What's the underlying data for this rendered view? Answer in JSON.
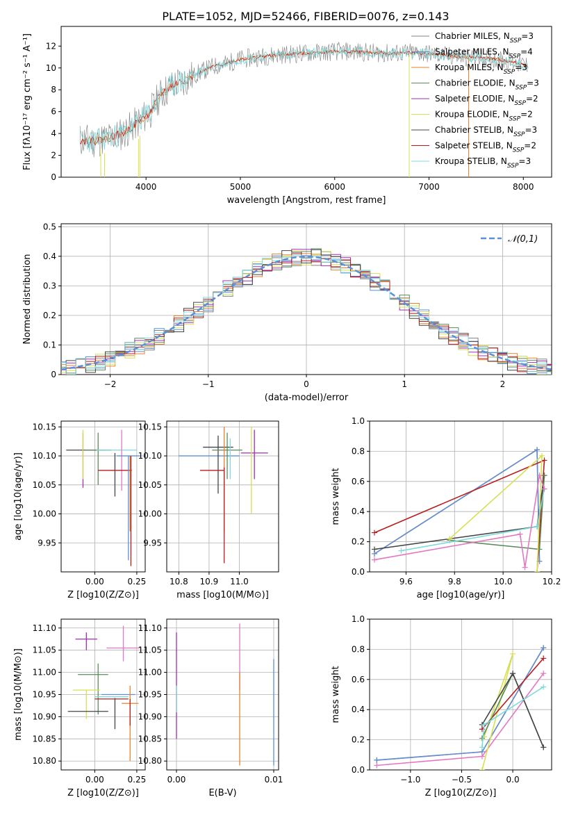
{
  "figure": {
    "title": "PLATE=1052, MJD=52466, FIBERID=0076, z=0.143"
  },
  "model_colors": {
    "Chabrier MILES": "#808080",
    "Salpeter MILES": "#5b8fd8",
    "Kroupa MILES": "#e8812c",
    "Chabrier ELODIE": "#5a8a5a",
    "Salpeter ELODIE": "#a02bb5",
    "Kroupa ELODIE": "#d7e052",
    "Chabrier STELIB": "#444444",
    "Salpeter STELIB": "#b71c1c",
    "Kroupa STELIB": "#7fd9dd",
    "pink": "#e377c2",
    "normal": "#5b8fd8"
  },
  "chart_data": [
    {
      "id": "spectrum",
      "type": "line",
      "xlabel": "wavelength [Angstrom, rest frame]",
      "ylabel": "Flux [fλ10⁻¹⁷ erg cm⁻² s⁻¹ A⁻¹]",
      "xlim": [
        3100,
        8300
      ],
      "ylim": [
        0,
        13.8
      ],
      "xticks": [
        4000,
        5000,
        6000,
        7000,
        8000
      ],
      "yticks": [
        0,
        2,
        4,
        6,
        8,
        10,
        12
      ],
      "legend_position": "right",
      "legend": [
        "Chabrier MILES, N_SSP=3",
        "Salpeter MILES, N_SSP=4",
        "Kroupa MILES, N_SSP=3",
        "Chabrier ELODIE, N_SSP=3",
        "Salpeter ELODIE, N_SSP=2",
        "Kroupa ELODIE, N_SSP=2",
        "Chabrier STELIB, N_SSP=3",
        "Salpeter STELIB, N_SSP=2",
        "Kroupa STELIB, N_SSP=3"
      ],
      "continuum": {
        "x": [
          3300,
          3450,
          3550,
          3650,
          3750,
          3850,
          3950,
          4050,
          4150,
          4250,
          4350,
          4450,
          4550,
          4700,
          4850,
          5000,
          5200,
          5400,
          5600,
          5800,
          6000,
          6200,
          6400,
          6600,
          6800,
          7000,
          7200,
          7400,
          7600,
          7800,
          8050
        ],
        "y": [
          3.4,
          3.3,
          3.5,
          3.7,
          4.0,
          4.6,
          5.3,
          6.0,
          7.5,
          8.2,
          8.7,
          9.0,
          9.5,
          10.1,
          10.4,
          10.8,
          11.0,
          11.2,
          11.3,
          11.4,
          11.5,
          11.5,
          11.4,
          11.3,
          11.4,
          11.3,
          11.1,
          11.0,
          10.9,
          10.7,
          10.2
        ]
      },
      "observed_noise_amplitude": 1.6,
      "spikes": [
        {
          "x": 3520,
          "y0": 0,
          "y1": 2.6
        },
        {
          "x": 3560,
          "y0": 0,
          "y1": 2.2
        },
        {
          "x": 3920,
          "y0": 0,
          "y1": 3.5
        },
        {
          "x": 3935,
          "y0": 0,
          "y1": 3.8
        },
        {
          "x": 6790,
          "y0": 0,
          "y1": 11.2
        },
        {
          "x": 7420,
          "y0": 0,
          "y1": 11.0
        }
      ]
    },
    {
      "id": "residuals",
      "type": "line",
      "xlabel": "(data-model)/error",
      "ylabel": "Normed distribution",
      "xlim": [
        -2.5,
        2.5
      ],
      "ylim": [
        0,
        0.51
      ],
      "xticks": [
        -2,
        -1,
        0,
        1,
        2
      ],
      "yticks": [
        0,
        0.1,
        0.2,
        0.3,
        0.4,
        0.5
      ],
      "legend_position": "top-right",
      "legend": [
        "𝒩(0,1)"
      ],
      "bin_width": 0.1,
      "series": [
        {
          "color": "#808080",
          "seed": 1
        },
        {
          "color": "#5b8fd8",
          "seed": 2
        },
        {
          "color": "#e8812c",
          "seed": 3
        },
        {
          "color": "#5a8a5a",
          "seed": 4
        },
        {
          "color": "#a02bb5",
          "seed": 5
        },
        {
          "color": "#d7e052",
          "seed": 6
        },
        {
          "color": "#444444",
          "seed": 7
        },
        {
          "color": "#b71c1c",
          "seed": 8
        },
        {
          "color": "#7fd9dd",
          "seed": 9
        }
      ]
    },
    {
      "id": "age-vs-Z",
      "type": "scatter",
      "xlabel": "Z [log10(Z/Z⊙)]",
      "ylabel": "age  [log10(age/yr)]",
      "xlim": [
        -0.2,
        0.3
      ],
      "ylim": [
        9.9,
        10.16
      ],
      "xticks": [
        0.0,
        0.25
      ],
      "yticks": [
        9.95,
        10.0,
        10.05,
        10.1,
        10.15
      ],
      "points": [
        {
          "x": -0.05,
          "y": 10.11,
          "xerr": 0.12,
          "yerr_lo": 0.0,
          "yerr_hi": 0.0,
          "color": "#444444"
        },
        {
          "x": 0.02,
          "y": 10.11,
          "xerr": 0.08,
          "yerr_lo": 0.06,
          "yerr_hi": 0.03,
          "color": "#5a8a5a"
        },
        {
          "x": -0.07,
          "y": 10.1,
          "xerr": 0.0,
          "yerr_lo": 0.055,
          "yerr_hi": 0.04,
          "color": "#a02bb5"
        },
        {
          "x": -0.07,
          "y": 10.1,
          "xerr": 0.0,
          "yerr_lo": 0.04,
          "yerr_hi": 0.045,
          "color": "#d7e052"
        },
        {
          "x": 0.12,
          "y": 10.1,
          "xerr": 0.0,
          "yerr_lo": 0.07,
          "yerr_hi": 0.005,
          "color": "#444444"
        },
        {
          "x": 0.13,
          "y": 10.11,
          "xerr": 0.12,
          "yerr_lo": 0.0,
          "yerr_hi": 0.0,
          "color": "#7fd9dd"
        },
        {
          "x": 0.16,
          "y": 10.08,
          "xerr": 0.0,
          "yerr_lo": 0.04,
          "yerr_hi": 0.065,
          "color": "#e377c2"
        },
        {
          "x": 0.12,
          "y": 10.075,
          "xerr": 0.1,
          "yerr_lo": 0.0,
          "yerr_hi": 0.0,
          "color": "#b71c1c"
        },
        {
          "x": 0.2,
          "y": 10.1,
          "xerr": 0.07,
          "yerr_lo": 0.18,
          "yerr_hi": 0.0,
          "color": "#5b8fd8"
        },
        {
          "x": 0.21,
          "y": 10.1,
          "xerr": 0.0,
          "yerr_lo": 0.13,
          "yerr_hi": 0.0,
          "color": "#e8812c"
        },
        {
          "x": 0.215,
          "y": 10.1,
          "xerr": 0.0,
          "yerr_lo": 0.19,
          "yerr_hi": 0.0,
          "color": "#b71c1c"
        }
      ]
    },
    {
      "id": "age-vs-mass",
      "type": "scatter",
      "xlabel": "mass [log10(M/M⊙)]",
      "ylabel": "",
      "xlim": [
        10.76,
        11.13
      ],
      "ylim": [
        9.9,
        10.16
      ],
      "xticks": [
        10.8,
        10.9,
        11.0
      ],
      "yticks": [
        9.95,
        10.0,
        10.05,
        10.1,
        10.15
      ],
      "points": [
        {
          "x": 10.9,
          "y": 10.1,
          "xerr": 0.1,
          "yerr_lo": 0.0,
          "yerr_hi": 0.0,
          "color": "#5b8fd8"
        },
        {
          "x": 10.93,
          "y": 10.115,
          "xerr": 0.05,
          "yerr_lo": 0.08,
          "yerr_hi": 0.02,
          "color": "#444444"
        },
        {
          "x": 10.96,
          "y": 10.11,
          "xerr": 0.05,
          "yerr_lo": 0.05,
          "yerr_hi": 0.03,
          "color": "#5a8a5a"
        },
        {
          "x": 11.05,
          "y": 10.105,
          "xerr": 0.045,
          "yerr_lo": 0.045,
          "yerr_hi": 0.04,
          "color": "#a02bb5"
        },
        {
          "x": 10.95,
          "y": 10.1,
          "xerr": 0.0,
          "yerr_lo": 0.13,
          "yerr_hi": 0.05,
          "color": "#e8812c"
        },
        {
          "x": 10.91,
          "y": 10.075,
          "xerr": 0.04,
          "yerr_lo": 0.0,
          "yerr_hi": 0.0,
          "color": "#b71c1c"
        },
        {
          "x": 10.95,
          "y": 10.08,
          "xerr": 0.0,
          "yerr_lo": 0.165,
          "yerr_hi": 0.0,
          "color": "#b71c1c"
        },
        {
          "x": 10.97,
          "y": 10.1,
          "xerr": 0.0,
          "yerr_lo": 0.04,
          "yerr_hi": 0.03,
          "color": "#7fd9dd"
        },
        {
          "x": 11.04,
          "y": 10.1,
          "xerr": 0.0,
          "yerr_lo": 0.1,
          "yerr_hi": 0.05,
          "color": "#d7e052"
        }
      ]
    },
    {
      "id": "mass-weight-vs-age",
      "type": "line",
      "xlabel": "age  [log10(age/yr)]",
      "ylabel": "mass weight",
      "xlim": [
        9.45,
        10.2
      ],
      "ylim": [
        0,
        1.0
      ],
      "xticks": [
        9.6,
        9.8,
        10.0,
        10.2
      ],
      "yticks": [
        0.0,
        0.2,
        0.4,
        0.6,
        0.8,
        1.0
      ],
      "series": [
        {
          "color": "#e8812c",
          "x": [
            9.47,
            10.14,
            10.15
          ],
          "y": [
            0.12,
            0.81,
            0.07
          ]
        },
        {
          "color": "#5b8fd8",
          "x": [
            9.47,
            10.14,
            10.15
          ],
          "y": [
            0.12,
            0.81,
            0.07
          ]
        },
        {
          "color": "#b71c1c",
          "x": [
            9.47,
            10.17,
            10.14
          ],
          "y": [
            0.26,
            0.74,
            0.0
          ]
        },
        {
          "color": "#444444",
          "x": [
            9.47,
            10.14,
            10.17
          ],
          "y": [
            0.15,
            0.3,
            0.64
          ]
        },
        {
          "color": "#5a8a5a",
          "x": [
            9.78,
            10.15,
            10.17
          ],
          "y": [
            0.21,
            0.15,
            0.64
          ]
        },
        {
          "color": "#d7e052",
          "x": [
            9.78,
            10.16,
            10.14
          ],
          "y": [
            0.22,
            0.77,
            0.0
          ]
        },
        {
          "color": "#7fd9dd",
          "x": [
            9.58,
            10.14,
            10.17
          ],
          "y": [
            0.14,
            0.3,
            0.55
          ]
        },
        {
          "color": "#e377c2",
          "x": [
            9.47,
            10.07,
            10.09,
            10.15,
            10.17
          ],
          "y": [
            0.08,
            0.25,
            0.03,
            0.64,
            0.55
          ]
        }
      ]
    },
    {
      "id": "mass-vs-Z",
      "type": "scatter",
      "xlabel": "Z [log10(Z/Z⊙)]",
      "ylabel": "mass [log10(M/M⊙)]",
      "xlim": [
        -0.2,
        0.3
      ],
      "ylim": [
        10.78,
        11.12
      ],
      "xticks": [
        0.0,
        0.25
      ],
      "yticks": [
        10.8,
        10.85,
        10.9,
        10.95,
        11.0,
        11.05,
        11.1
      ],
      "points": [
        {
          "x": -0.05,
          "y": 11.075,
          "xerr": 0.065,
          "yerr_lo": 0.025,
          "yerr_hi": 0.015,
          "color": "#a02bb5"
        },
        {
          "x": 0.17,
          "y": 11.055,
          "xerr": 0.1,
          "yerr_lo": 0.03,
          "yerr_hi": 0.05,
          "color": "#e377c2"
        },
        {
          "x": -0.01,
          "y": 10.995,
          "xerr": 0.09,
          "yerr_lo": 0.0,
          "yerr_hi": 0.0,
          "color": "#5a8a5a"
        },
        {
          "x": 0.02,
          "y": 10.995,
          "xerr": 0.0,
          "yerr_lo": 0.09,
          "yerr_hi": 0.025,
          "color": "#5a8a5a"
        },
        {
          "x": -0.05,
          "y": 10.96,
          "xerr": 0.08,
          "yerr_lo": 0.065,
          "yerr_hi": 0.0,
          "color": "#d7e052"
        },
        {
          "x": 0.14,
          "y": 10.95,
          "xerr": 0.1,
          "yerr_lo": 0.0,
          "yerr_hi": 0.0,
          "color": "#5b8fd8"
        },
        {
          "x": 0.1,
          "y": 10.945,
          "xerr": 0.1,
          "yerr_lo": 0.0,
          "yerr_hi": 0.0,
          "color": "#7fd9dd"
        },
        {
          "x": 0.1,
          "y": 10.94,
          "xerr": 0.1,
          "yerr_lo": 0.0,
          "yerr_hi": 0.0,
          "color": "#b71c1c"
        },
        {
          "x": 0.21,
          "y": 10.93,
          "xerr": 0.05,
          "yerr_lo": 0.13,
          "yerr_hi": 0.04,
          "color": "#e8812c"
        },
        {
          "x": -0.04,
          "y": 10.912,
          "xerr": 0.12,
          "yerr_lo": 0.0,
          "yerr_hi": 0.0,
          "color": "#444444"
        },
        {
          "x": 0.12,
          "y": 10.912,
          "xerr": 0.0,
          "yerr_lo": 0.04,
          "yerr_hi": 0.03,
          "color": "#444444"
        },
        {
          "x": 0.21,
          "y": 10.94,
          "xerr": 0.0,
          "yerr_lo": 0.06,
          "yerr_hi": 0.0,
          "color": "#b71c1c"
        }
      ]
    },
    {
      "id": "mass-vs-EBV",
      "type": "scatter",
      "xlabel": "E(B-V)",
      "ylabel": "",
      "xlim": [
        -0.001,
        0.0105
      ],
      "ylim": [
        10.78,
        11.12
      ],
      "xticks": [
        0.0,
        0.01
      ],
      "xtick_labels": [
        "0.00",
        "0.01"
      ],
      "yticks": [
        10.8,
        10.85,
        10.9,
        10.95,
        11.0,
        11.05,
        11.1
      ],
      "points": [
        {
          "x": 0.0,
          "y": 11.0,
          "xerr": 0.0,
          "yerr_lo": 0.15,
          "yerr_hi": 0.09,
          "color": "#a02bb5"
        },
        {
          "x": 0.0,
          "y": 10.93,
          "xerr": 0.0,
          "yerr_lo": 0.02,
          "yerr_hi": 0.04,
          "color": "#7fd9dd"
        },
        {
          "x": 0.0065,
          "y": 11.03,
          "xerr": 0.0,
          "yerr_lo": 0.07,
          "yerr_hi": 0.08,
          "color": "#e377c2"
        },
        {
          "x": 0.0065,
          "y": 10.9,
          "xerr": 0.0,
          "yerr_lo": 0.11,
          "yerr_hi": 0.1,
          "color": "#e8812c"
        },
        {
          "x": 0.01,
          "y": 10.91,
          "xerr": 0.0,
          "yerr_lo": 0.12,
          "yerr_hi": 0.12,
          "color": "#5b8fd8"
        }
      ]
    },
    {
      "id": "mass-weight-vs-Z",
      "type": "line",
      "xlabel": "Z [log10(Z/Z⊙)]",
      "ylabel": "mass weight",
      "xlim": [
        -1.4,
        0.38
      ],
      "ylim": [
        0,
        1.0
      ],
      "xticks": [
        -1.0,
        -0.5,
        0.0
      ],
      "xtick_labels": [
        "−1.0",
        "−0.5",
        "0.0"
      ],
      "yticks": [
        0.0,
        0.2,
        0.4,
        0.6,
        0.8,
        1.0
      ],
      "series": [
        {
          "color": "#e8812c",
          "x": [
            -1.33,
            -0.3,
            0.3
          ],
          "y": [
            0.065,
            0.12,
            0.81
          ]
        },
        {
          "color": "#5b8fd8",
          "x": [
            -1.33,
            -0.3,
            0.3
          ],
          "y": [
            0.065,
            0.12,
            0.81
          ]
        },
        {
          "color": "#e377c2",
          "x": [
            -1.33,
            -0.3,
            0.3
          ],
          "y": [
            0.03,
            0.09,
            0.64
          ]
        },
        {
          "color": "#d7e052",
          "x": [
            -0.3,
            0.0,
            -0.28
          ],
          "y": [
            0.0,
            0.77,
            0.22
          ]
        },
        {
          "color": "#b71c1c",
          "x": [
            -0.3,
            0.3
          ],
          "y": [
            0.27,
            0.74
          ]
        },
        {
          "color": "#5a8a5a",
          "x": [
            -0.3,
            0.0,
            0.3
          ],
          "y": [
            0.21,
            0.64,
            0.15
          ]
        },
        {
          "color": "#444444",
          "x": [
            -0.3,
            0.0,
            0.3
          ],
          "y": [
            0.3,
            0.64,
            0.15
          ]
        },
        {
          "color": "#7fd9dd",
          "x": [
            -0.3,
            -0.28,
            0.3
          ],
          "y": [
            0.15,
            0.3,
            0.55
          ]
        }
      ]
    }
  ]
}
